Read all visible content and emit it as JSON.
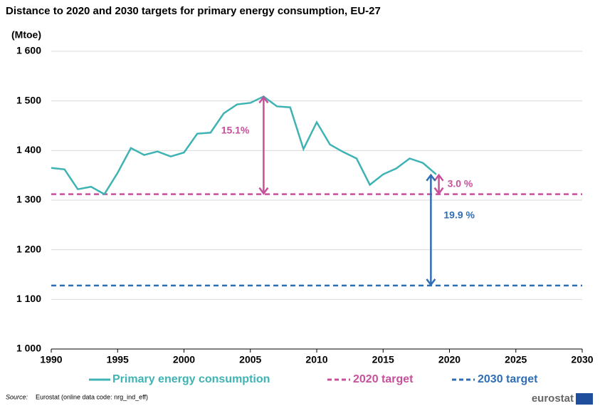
{
  "chart_data": {
    "type": "line",
    "title": "Distance to 2020 and 2030 targets for primary energy consumption, EU-27",
    "y_label": "(Mtoe)",
    "x": [
      1990,
      1991,
      1992,
      1993,
      1994,
      1995,
      1996,
      1997,
      1998,
      1999,
      2000,
      2001,
      2002,
      2003,
      2004,
      2005,
      2006,
      2007,
      2008,
      2009,
      2010,
      2011,
      2012,
      2013,
      2014,
      2015,
      2016,
      2017,
      2018,
      2019
    ],
    "series": [
      {
        "name": "Primary energy consumption",
        "color": "#3fb3b3",
        "values": [
          1365,
          1362,
          1322,
          1327,
          1312,
          1355,
          1405,
          1391,
          1398,
          1388,
          1396,
          1434,
          1436,
          1475,
          1493,
          1496,
          1509,
          1489,
          1487,
          1403,
          1457,
          1412,
          1397,
          1384,
          1331,
          1352,
          1364,
          1384,
          1375,
          1352
        ]
      }
    ],
    "targets": [
      {
        "name": "2020 target",
        "color": "#c8509b",
        "value": 1312
      },
      {
        "name": "2030 target",
        "color": "#2f6db4",
        "value": 1128
      }
    ],
    "annotations": [
      {
        "text": "15.1%",
        "x": 2006,
        "y1": 1509,
        "y2": 1312,
        "color": "#c8509b"
      },
      {
        "text": "3.0 %",
        "x": 2019.2,
        "y1": 1352,
        "y2": 1312,
        "color": "#c8509b"
      },
      {
        "text": "19.9 %",
        "x": 2018.6,
        "y1": 1352,
        "y2": 1128,
        "color": "#2f6db4"
      }
    ],
    "xlim": [
      1990,
      2030
    ],
    "xticks": [
      1990,
      1995,
      2000,
      2005,
      2010,
      2015,
      2020,
      2025,
      2030
    ],
    "ylim": [
      1000,
      1600
    ],
    "yticks": [
      {
        "value": 1000,
        "label": "1 000"
      },
      {
        "value": 1100,
        "label": "1 100"
      },
      {
        "value": 1200,
        "label": "1 200"
      },
      {
        "value": 1300,
        "label": "1 300"
      },
      {
        "value": 1400,
        "label": "1 400"
      },
      {
        "value": 1500,
        "label": "1 500"
      },
      {
        "value": 1600,
        "label": "1 600"
      }
    ],
    "grid": true,
    "source_label": "Source:",
    "source": "Eurostat (online data code: nrg_ind_eff)",
    "logo": "eurostat"
  }
}
